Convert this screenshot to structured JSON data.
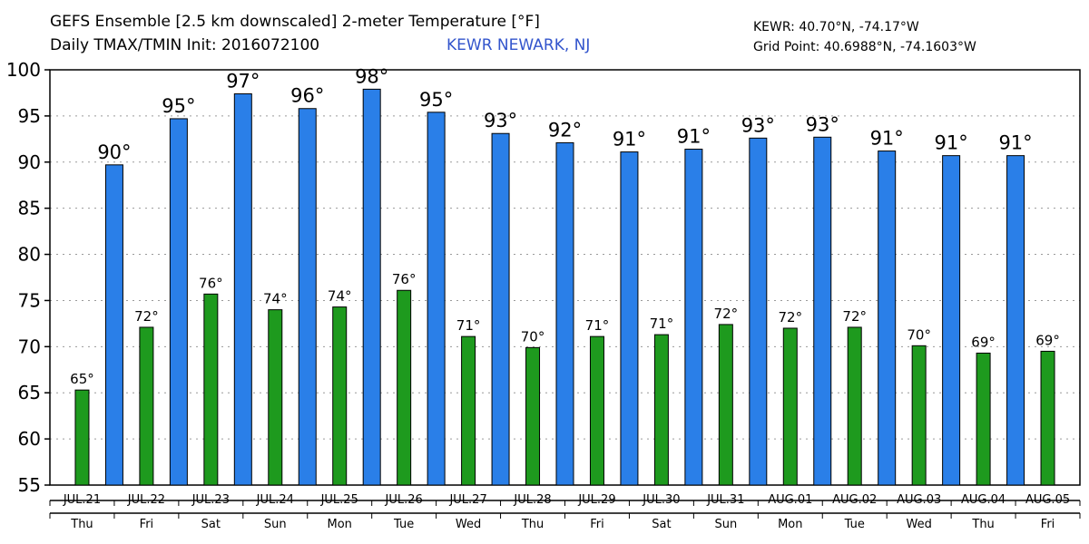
{
  "header": {
    "title": "GEFS Ensemble [2.5 km downscaled] 2-meter Temperature [°F]",
    "subtitle": "Daily TMAX/TMIN Init: 2016072100",
    "location": "KEWR NEWARK, NJ",
    "station": "KEWR: 40.70°N, -74.17°W",
    "grid_point": "Grid Point: 40.6988°N, -74.1603°W"
  },
  "colors": {
    "tmax": "#2a7fe8",
    "tmin": "#1e9a1e"
  },
  "chart_data": {
    "type": "bar",
    "title": "GEFS Ensemble [2.5 km downscaled] 2-meter Temperature [°F]",
    "subtitle": "Daily TMAX/TMIN Init: 2016072100",
    "xlabel": "",
    "ylabel": "",
    "ylim": [
      55,
      100
    ],
    "yticks": [
      55,
      60,
      65,
      70,
      75,
      80,
      85,
      90,
      95,
      100
    ],
    "grid": true,
    "categories": [
      "JUL.21",
      "JUL.22",
      "JUL.23",
      "JUL.24",
      "JUL.25",
      "JUL.26",
      "JUL.27",
      "JUL.28",
      "JUL.29",
      "JUL.30",
      "JUL.31",
      "AUG.01",
      "AUG.02",
      "AUG.03",
      "AUG.04",
      "AUG.05"
    ],
    "days": [
      "Thu",
      "Fri",
      "Sat",
      "Sun",
      "Mon",
      "Tue",
      "Wed",
      "Thu",
      "Fri",
      "Sat",
      "Sun",
      "Mon",
      "Tue",
      "Wed",
      "Thu",
      "Fri"
    ],
    "tmin": {
      "values": [
        65.3,
        72.1,
        75.7,
        74.0,
        74.3,
        76.1,
        71.1,
        69.9,
        71.1,
        71.3,
        72.4,
        72.0,
        72.1,
        70.1,
        69.3,
        69.5
      ],
      "labels": [
        "65°",
        "72°",
        "76°",
        "74°",
        "74°",
        "76°",
        "71°",
        "70°",
        "71°",
        "71°",
        "72°",
        "72°",
        "72°",
        "70°",
        "69°",
        "69°"
      ]
    },
    "tmax": {
      "values": [
        89.7,
        94.7,
        97.4,
        95.8,
        97.9,
        95.4,
        93.1,
        92.1,
        91.1,
        91.4,
        92.6,
        92.7,
        91.2,
        90.7,
        90.7
      ],
      "labels": [
        "90°",
        "95°",
        "97°",
        "96°",
        "98°",
        "95°",
        "93°",
        "92°",
        "91°",
        "91°",
        "93°",
        "93°",
        "91°",
        "91°",
        "91°"
      ]
    }
  }
}
